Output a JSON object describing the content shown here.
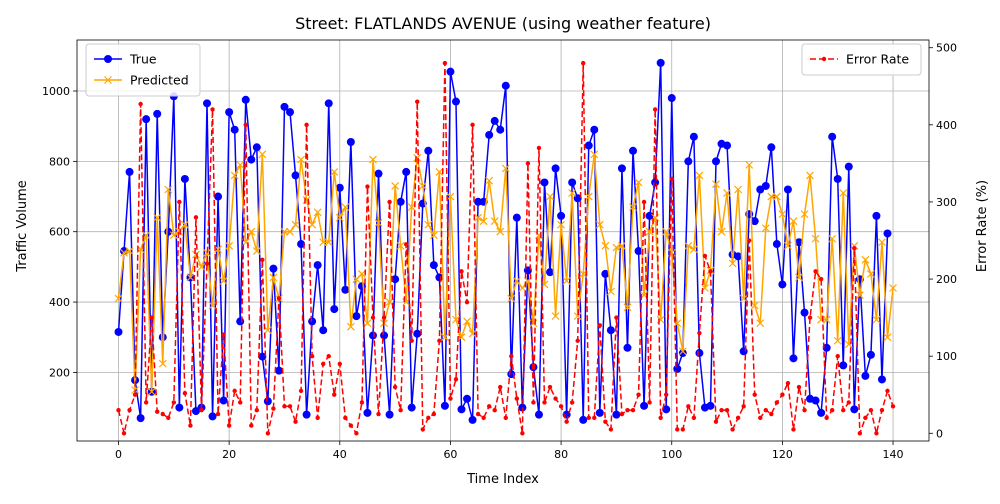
{
  "chart_data": {
    "type": "line",
    "title": "Street: FLATLANDS AVENUE (using weather feature)",
    "xlabel": "Time Index",
    "ylabel_left": "Traffic Volume",
    "ylabel_right": "Error Rate (%)",
    "xlim": [
      -7.5,
      146.5
    ],
    "ylim_left": [
      5,
      1145
    ],
    "ylim_right": [
      -10,
      510
    ],
    "x_ticks": [
      0,
      20,
      40,
      60,
      80,
      100,
      120,
      140
    ],
    "y_left_ticks": [
      200,
      400,
      600,
      800,
      1000
    ],
    "y_right_ticks": [
      0,
      100,
      200,
      300,
      400,
      500
    ],
    "grid": true,
    "legend_left_position": "upper left",
    "legend_right_position": "upper right",
    "colors": {
      "true": "#0000ff",
      "predicted": "#ffa500",
      "error": "#ff0000"
    },
    "series": [
      {
        "name": "True",
        "axis": "left",
        "marker": "circle",
        "values": [
          315,
          545,
          770,
          178,
          70,
          920,
          145,
          935,
          300,
          600,
          985,
          100,
          750,
          470,
          90,
          100,
          965,
          75,
          700,
          120,
          940,
          890,
          345,
          975,
          805,
          840,
          245,
          118,
          495,
          205,
          955,
          940,
          760,
          565,
          80,
          345,
          505,
          320,
          965,
          380,
          725,
          435,
          855,
          360,
          445,
          85,
          305,
          765,
          305,
          80,
          465,
          685,
          770,
          100,
          310,
          680,
          830,
          505,
          470,
          105,
          1055,
          970,
          95,
          125,
          65,
          685,
          685,
          875,
          915,
          890,
          1015,
          195,
          640,
          100,
          490,
          215,
          80,
          740,
          485,
          780,
          645,
          80,
          740,
          695,
          65,
          845,
          890,
          85,
          480,
          320,
          80,
          780,
          270,
          830,
          545,
          105,
          645,
          740,
          1080,
          95,
          980,
          210,
          255,
          800,
          870,
          255,
          100,
          105,
          800,
          850,
          845,
          535,
          530,
          260,
          650,
          630,
          720,
          730,
          840,
          565,
          450,
          720,
          240,
          570,
          370,
          125,
          120,
          85,
          270,
          870,
          750,
          220,
          785,
          95,
          465,
          190,
          250,
          645,
          180,
          595
        ]
      },
      {
        "name": "Predicted",
        "axis": "left",
        "marker": "x",
        "values": [
          410,
          540,
          545,
          150,
          550,
          590,
          145,
          640,
          225,
          720,
          590,
          600,
          620,
          470,
          535,
          500,
          540,
          390,
          550,
          460,
          560,
          760,
          790,
          570,
          600,
          545,
          820,
          320,
          470,
          410,
          600,
          600,
          620,
          805,
          690,
          620,
          655,
          570,
          570,
          770,
          640,
          670,
          330,
          465,
          480,
          340,
          805,
          625,
          340,
          400,
          730,
          560,
          400,
          670,
          810,
          730,
          620,
          590,
          770,
          300,
          700,
          350,
          300,
          345,
          310,
          640,
          630,
          745,
          630,
          600,
          780,
          410,
          460,
          440,
          460,
          340,
          590,
          450,
          700,
          360,
          620,
          460,
          710,
          360,
          480,
          700,
          820,
          620,
          560,
          430,
          555,
          560,
          385,
          670,
          740,
          420,
          600,
          640,
          350,
          600,
          540,
          340,
          260,
          560,
          550,
          760,
          440,
          490,
          735,
          600,
          710,
          510,
          720,
          410,
          790,
          390,
          340,
          610,
          700,
          700,
          650,
          560,
          630,
          470,
          650,
          760,
          580,
          350,
          350,
          580,
          290,
          710,
          280,
          560,
          420,
          520,
          480,
          350,
          570,
          300,
          440
        ]
      },
      {
        "name": "Error Rate",
        "axis": "right",
        "marker": "dot",
        "values": [
          30,
          0,
          30,
          50,
          427,
          40,
          150,
          28,
          25,
          20,
          40,
          300,
          52,
          10,
          280,
          30,
          220,
          420,
          25,
          128,
          10,
          55,
          40,
          400,
          10,
          30,
          225,
          0,
          32,
          175,
          35,
          35,
          15,
          55,
          400,
          100,
          20,
          90,
          100,
          50,
          90,
          20,
          10,
          0,
          40,
          320,
          150,
          25,
          150,
          300,
          60,
          30,
          245,
          120,
          430,
          5,
          20,
          25,
          120,
          480,
          45,
          70,
          210,
          170,
          400,
          25,
          20,
          35,
          30,
          60,
          20,
          100,
          45,
          0,
          350,
          40,
          370,
          40,
          60,
          45,
          35,
          15,
          40,
          120,
          480,
          20,
          20,
          140,
          15,
          5,
          150,
          25,
          30,
          30,
          50,
          300,
          40,
          420,
          20,
          50,
          330,
          5,
          5,
          35,
          20,
          130,
          230,
          210,
          15,
          30,
          30,
          5,
          20,
          35,
          250,
          50,
          20,
          30,
          25,
          40,
          50,
          65,
          5,
          60,
          30,
          150,
          210,
          200,
          20,
          30,
          100,
          30,
          40,
          240,
          0,
          20,
          30,
          0,
          30,
          55,
          35
        ]
      }
    ],
    "legend_left": [
      {
        "label": "True",
        "color": "#0000ff",
        "marker": "circle"
      },
      {
        "label": "Predicted",
        "color": "#ffa500",
        "marker": "x"
      }
    ],
    "legend_right": [
      {
        "label": "Error Rate",
        "color": "#ff0000",
        "marker": "dot"
      }
    ]
  }
}
